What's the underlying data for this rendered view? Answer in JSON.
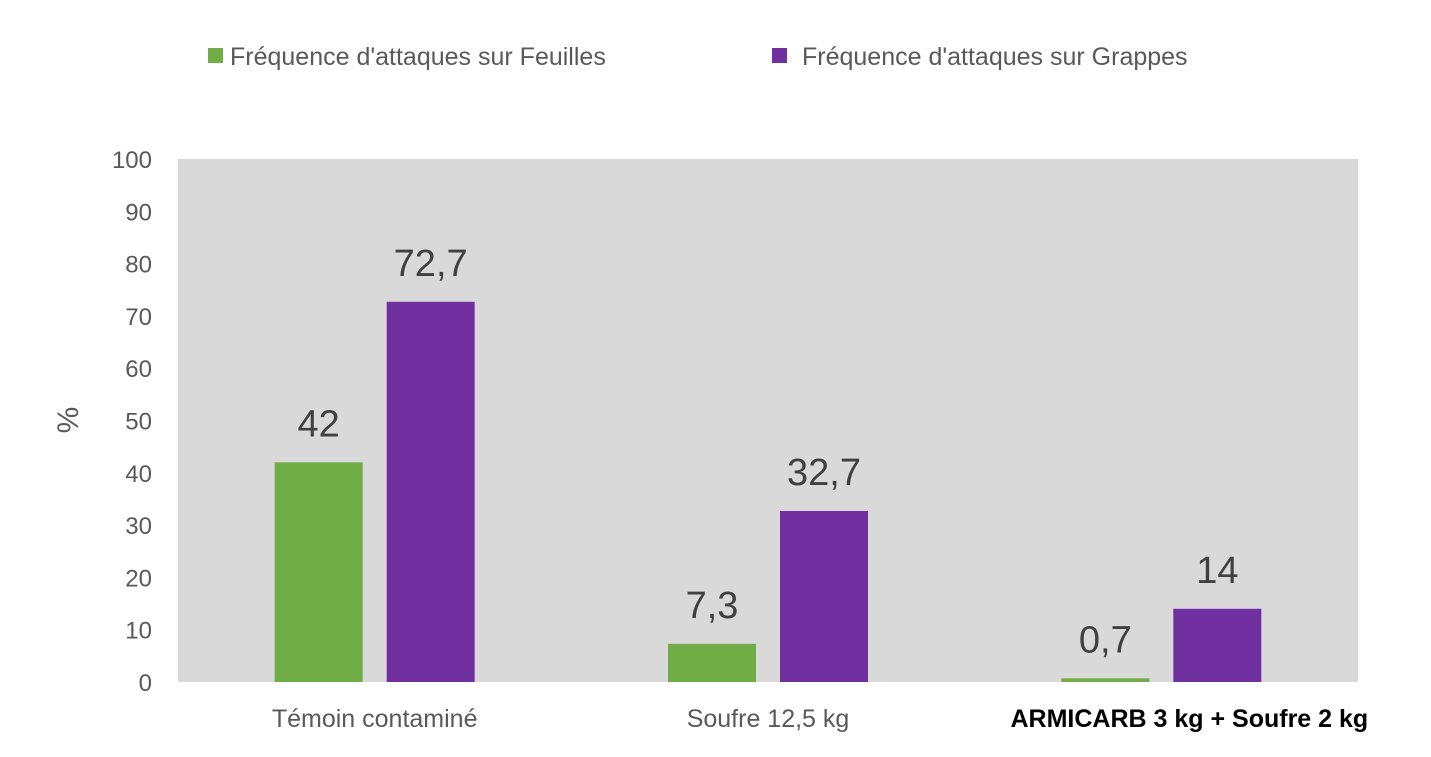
{
  "chart_data": {
    "type": "bar",
    "categories": [
      "Témoin contaminé",
      "Soufre 12,5 kg",
      "ARMICARB 3 kg + Soufre 2 kg"
    ],
    "series": [
      {
        "name": "Fréquence d'attaques sur Feuilles",
        "values": [
          42,
          7.3,
          0.7
        ],
        "labels": [
          "42",
          "7,3",
          "0,7"
        ],
        "color": "#70ad47"
      },
      {
        "name": "Fréquence d'attaques sur Grappes",
        "values": [
          72.7,
          32.7,
          14
        ],
        "labels": [
          "72,7",
          "32,7",
          "14"
        ],
        "color": "#7030a0"
      }
    ],
    "ylabel": "%",
    "ylim": [
      0,
      100
    ],
    "yticks": [
      0,
      10,
      20,
      30,
      40,
      50,
      60,
      70,
      80,
      90,
      100
    ],
    "legend_position": "top",
    "plot_background": "#d9d9d9",
    "grid": false
  }
}
